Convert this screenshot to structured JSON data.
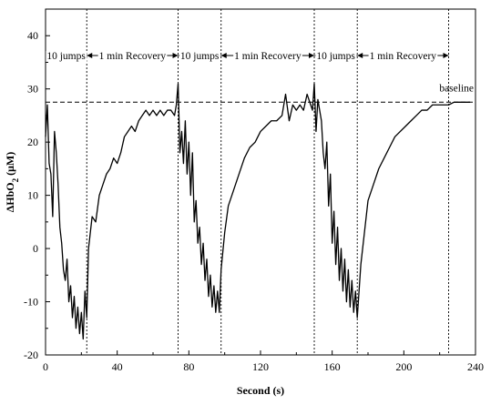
{
  "chart_data": {
    "type": "line",
    "title": "",
    "xlabel": "Second (s)",
    "ylabel_prefix": "ΔHbO",
    "ylabel_sub": "2",
    "ylabel_suffix": " (μM)",
    "xlim": [
      0,
      240
    ],
    "ylim": [
      -20,
      45
    ],
    "xticks": [
      0,
      40,
      80,
      120,
      160,
      200,
      240
    ],
    "yticks": [
      -20,
      -10,
      0,
      10,
      20,
      30,
      40
    ],
    "grid": false,
    "baseline": {
      "y": 27.5,
      "label": "baseline"
    },
    "phase_boundaries": [
      0,
      23,
      74,
      98,
      150,
      174,
      225
    ],
    "phases": [
      {
        "label": "10 jumps",
        "from": 0,
        "to": 23
      },
      {
        "label": "1 min Recovery",
        "from": 23,
        "to": 74
      },
      {
        "label": "10 jumps",
        "from": 74,
        "to": 98
      },
      {
        "label": "1 min Recovery",
        "from": 98,
        "to": 150
      },
      {
        "label": "10 jumps",
        "from": 150,
        "to": 174
      },
      {
        "label": "1 min Recovery",
        "from": 174,
        "to": 225
      }
    ],
    "series": [
      {
        "name": "",
        "x": [
          0,
          1,
          2,
          3,
          4,
          5,
          6,
          7,
          8,
          9,
          10,
          11,
          12,
          13,
          14,
          15,
          16,
          17,
          18,
          19,
          20,
          21,
          22,
          23,
          24,
          26,
          28,
          30,
          32,
          34,
          36,
          38,
          40,
          42,
          44,
          46,
          48,
          50,
          52,
          54,
          56,
          58,
          60,
          62,
          64,
          66,
          68,
          70,
          72,
          73,
          74,
          75,
          76,
          77,
          78,
          79,
          80,
          81,
          82,
          83,
          84,
          85,
          86,
          87,
          88,
          89,
          90,
          91,
          92,
          93,
          94,
          95,
          96,
          97,
          98,
          100,
          102,
          105,
          108,
          111,
          114,
          117,
          120,
          123,
          126,
          129,
          132,
          134,
          136,
          138,
          140,
          142,
          144,
          146,
          148,
          149,
          150,
          151,
          152,
          153,
          154,
          155,
          156,
          157,
          158,
          159,
          160,
          161,
          162,
          163,
          164,
          165,
          166,
          167,
          168,
          169,
          170,
          171,
          172,
          173,
          174,
          176,
          178,
          180,
          183,
          186,
          189,
          192,
          195,
          198,
          201,
          204,
          207,
          210,
          213,
          216,
          219,
          222,
          225,
          228,
          231,
          234,
          237
        ],
        "y": [
          21,
          27,
          16,
          14,
          6,
          22,
          18,
          12,
          4,
          1,
          -4,
          -6,
          -2,
          -10,
          -7,
          -13,
          -9,
          -15,
          -11,
          -16,
          -12,
          -17,
          -8,
          -13,
          0,
          6,
          5,
          10,
          12,
          14,
          15,
          17,
          16,
          18,
          21,
          22,
          23,
          22,
          24,
          25,
          26,
          25,
          26,
          25,
          26,
          25,
          26,
          26,
          25,
          27,
          31,
          18,
          22,
          16,
          24,
          14,
          20,
          10,
          18,
          5,
          9,
          1,
          4,
          -3,
          1,
          -6,
          -2,
          -9,
          -5,
          -11,
          -7,
          -12,
          -8,
          -12,
          -4,
          3,
          8,
          11,
          14,
          17,
          19,
          20,
          22,
          23,
          24,
          24,
          25,
          29,
          24,
          27,
          26,
          27,
          26,
          29,
          27,
          26,
          31,
          22,
          28,
          26,
          24,
          18,
          15,
          20,
          8,
          14,
          1,
          7,
          -3,
          4,
          -6,
          0,
          -8,
          -2,
          -10,
          -4,
          -11,
          -6,
          -12,
          -8,
          -13,
          -3,
          3,
          9,
          12,
          15,
          17,
          19,
          21,
          22,
          23,
          24,
          25,
          26,
          26,
          27,
          27,
          27,
          27,
          27.5,
          27.5,
          27.5,
          27.5
        ]
      }
    ]
  }
}
